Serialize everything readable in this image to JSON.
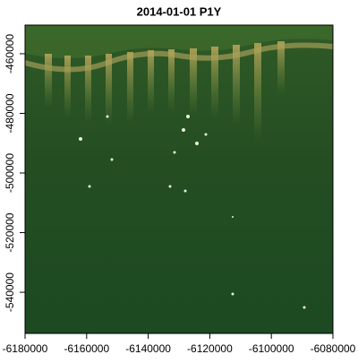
{
  "chart_data": {
    "type": "raster",
    "title": "2014-01-01 P1Y",
    "xlim": [
      -6180000,
      -6080000
    ],
    "xticks": [
      -6180000,
      -6160000,
      -6140000,
      -6120000,
      -6100000,
      -6080000
    ],
    "ylim": [
      -553800,
      -450400
    ],
    "yticks": [
      -540000,
      -520000,
      -500000,
      -480000,
      -460000
    ]
  }
}
